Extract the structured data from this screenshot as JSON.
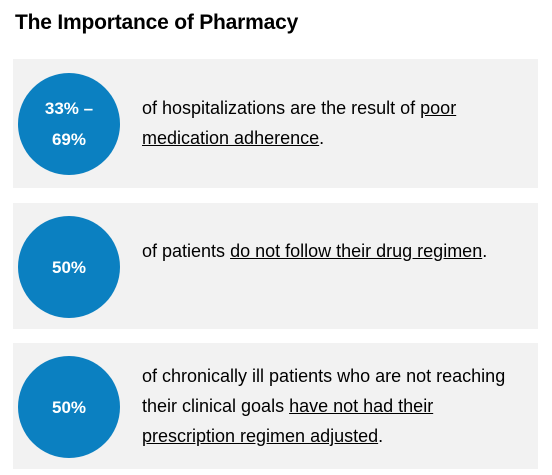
{
  "title": "The Importance of Pharmacy",
  "colors": {
    "circle": "#0b80c1",
    "panel_background": "#f2f2f2",
    "text": "#000000"
  },
  "stats": [
    {
      "value_line1": "33% –",
      "value_line2": "69%",
      "text_before": "of hospitalizations are the result of ",
      "text_underlined": "poor medication adherence",
      "text_after": "."
    },
    {
      "value": "50%",
      "text_before": "of patients ",
      "text_underlined": "do not follow their drug regimen",
      "text_after": "."
    },
    {
      "value": "50%",
      "text_before": "of chronically ill patients who are not reaching their clinical goals ",
      "text_underlined": "have not had their prescription regimen adjusted",
      "text_after": "."
    }
  ]
}
